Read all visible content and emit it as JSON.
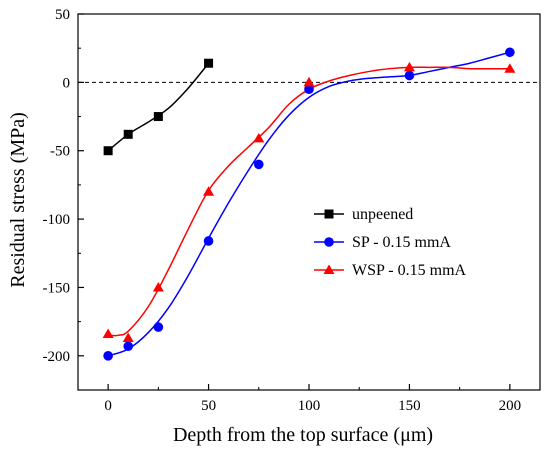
{
  "chart_data": {
    "type": "line",
    "title": "",
    "xlabel": "Depth from the top surface (μm)",
    "ylabel": "Residual stress (MPa)",
    "xlim": [
      -15,
      215
    ],
    "ylim": [
      -225,
      50
    ],
    "xticks": [
      0,
      50,
      100,
      150,
      200
    ],
    "yticks": [
      50,
      0,
      -50,
      -100,
      -150,
      -200
    ],
    "xtick_labels": [
      "0",
      "50",
      "100",
      "150",
      "200"
    ],
    "ytick_labels": [
      "50",
      "0",
      "-50",
      "-100",
      "-150",
      "-200"
    ],
    "reference_line": {
      "y": 0,
      "style": "dashed"
    },
    "legend_position": "center-right",
    "grid": false,
    "series": [
      {
        "name": "unpeened",
        "color": "#000000",
        "marker": "square",
        "x": [
          0,
          10,
          25,
          50
        ],
        "y": [
          -50,
          -38,
          -25,
          14
        ]
      },
      {
        "name": "SP - 0.15 mmA",
        "color": "#0000ff",
        "marker": "circle",
        "x": [
          0,
          10,
          25,
          50,
          75,
          100,
          150,
          200
        ],
        "y": [
          -200,
          -193,
          -179,
          -116,
          -60,
          -5,
          5,
          22
        ]
      },
      {
        "name": "WSP - 0.15 mmA",
        "color": "#ff0000",
        "marker": "triangle",
        "x": [
          0,
          10,
          25,
          50,
          75,
          100,
          150,
          200
        ],
        "y": [
          -184,
          -187,
          -150,
          -80,
          -41,
          0,
          11,
          10
        ]
      }
    ],
    "fit_curves": [
      {
        "series": "unpeened",
        "x": [
          0,
          10,
          20,
          30,
          40,
          50
        ],
        "y": [
          -50,
          -38,
          -29,
          -19,
          -4,
          14
        ]
      },
      {
        "series": "SP - 0.15 mmA",
        "x": [
          0,
          10,
          20,
          30,
          40,
          50,
          60,
          70,
          80,
          90,
          100,
          110,
          120,
          130,
          140,
          150,
          160,
          170,
          180,
          190,
          200
        ],
        "y": [
          -200,
          -195,
          -183,
          -165,
          -141,
          -114,
          -88,
          -64,
          -42,
          -24,
          -11,
          -3,
          1,
          3,
          4,
          5,
          8,
          11,
          14,
          18,
          22
        ]
      },
      {
        "series": "WSP - 0.15 mmA",
        "x": [
          0,
          5,
          10,
          20,
          30,
          40,
          50,
          60,
          70,
          80,
          90,
          100,
          110,
          120,
          130,
          140,
          150,
          160,
          170,
          180,
          190,
          200
        ],
        "y": [
          -185,
          -185,
          -182,
          -164,
          -137,
          -107,
          -79,
          -61,
          -47,
          -33,
          -16,
          -5,
          1,
          5,
          8,
          10,
          11,
          11,
          11,
          10,
          10,
          10
        ]
      }
    ]
  }
}
